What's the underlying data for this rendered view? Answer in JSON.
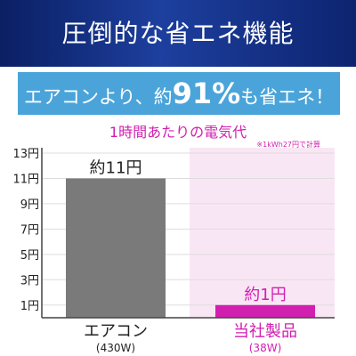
{
  "header": {
    "title": "圧倒的な省エネ機能"
  },
  "banner": {
    "prefix": "エアコンより、約",
    "percent": "91%",
    "suffix": "も省エネ！"
  },
  "chart_data": {
    "type": "bar",
    "title": "1時間あたりの電気代",
    "note": "※1kWh27円で計算",
    "ylim": [
      0,
      13
    ],
    "yticks": [
      "1円",
      "3円",
      "5円",
      "7円",
      "9円",
      "11円",
      "13円"
    ],
    "ytick_values": [
      1,
      3,
      5,
      7,
      9,
      11,
      13
    ],
    "categories": [
      "エアコン",
      "当社製品"
    ],
    "sublabels": [
      "(430W)",
      "(38W)"
    ],
    "values": [
      11,
      1
    ],
    "data_labels": [
      "約11円",
      "約1円"
    ],
    "colors": {
      "aircon_bar": "#7a7a7a",
      "product_bar": "#d11fb0",
      "product_panel": "#f9e6f5",
      "accent": "#d11fb0",
      "axis_text": "#222222"
    }
  }
}
